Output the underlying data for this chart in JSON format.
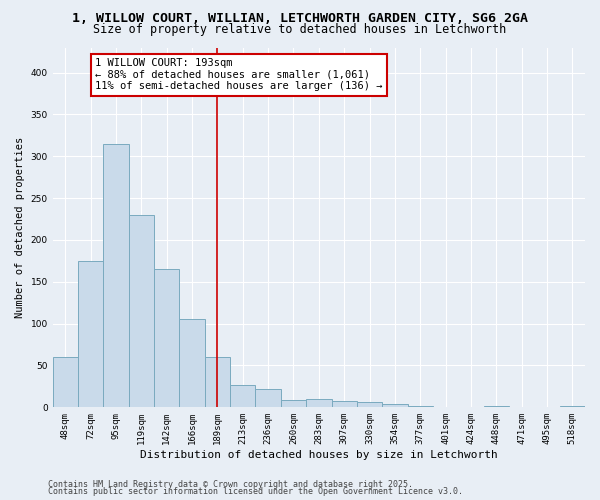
{
  "title1": "1, WILLOW COURT, WILLIAN, LETCHWORTH GARDEN CITY, SG6 2GA",
  "title2": "Size of property relative to detached houses in Letchworth",
  "xlabel": "Distribution of detached houses by size in Letchworth",
  "ylabel": "Number of detached properties",
  "categories": [
    "48sqm",
    "72sqm",
    "95sqm",
    "119sqm",
    "142sqm",
    "166sqm",
    "189sqm",
    "213sqm",
    "236sqm",
    "260sqm",
    "283sqm",
    "307sqm",
    "330sqm",
    "354sqm",
    "377sqm",
    "401sqm",
    "424sqm",
    "448sqm",
    "471sqm",
    "495sqm",
    "518sqm"
  ],
  "values": [
    60,
    175,
    315,
    230,
    165,
    105,
    60,
    27,
    22,
    9,
    10,
    8,
    6,
    4,
    1,
    0,
    0,
    1,
    0,
    0,
    1
  ],
  "bar_color": "#c9daea",
  "bar_edge_color": "#7aaabf",
  "vline_x": 6,
  "vline_color": "#cc0000",
  "annotation_text": "1 WILLOW COURT: 193sqm\n← 88% of detached houses are smaller (1,061)\n11% of semi-detached houses are larger (136) →",
  "ylim": [
    0,
    430
  ],
  "yticks": [
    0,
    50,
    100,
    150,
    200,
    250,
    300,
    350,
    400
  ],
  "footnote1": "Contains HM Land Registry data © Crown copyright and database right 2025.",
  "footnote2": "Contains public sector information licensed under the Open Government Licence v3.0.",
  "bg_color": "#e8eef5",
  "plot_bg_color": "#e8eef5",
  "title1_fontsize": 9.5,
  "title2_fontsize": 8.5,
  "xlabel_fontsize": 8,
  "ylabel_fontsize": 7.5,
  "tick_fontsize": 6.5,
  "annot_fontsize": 7.5,
  "footnote_fontsize": 6.0
}
